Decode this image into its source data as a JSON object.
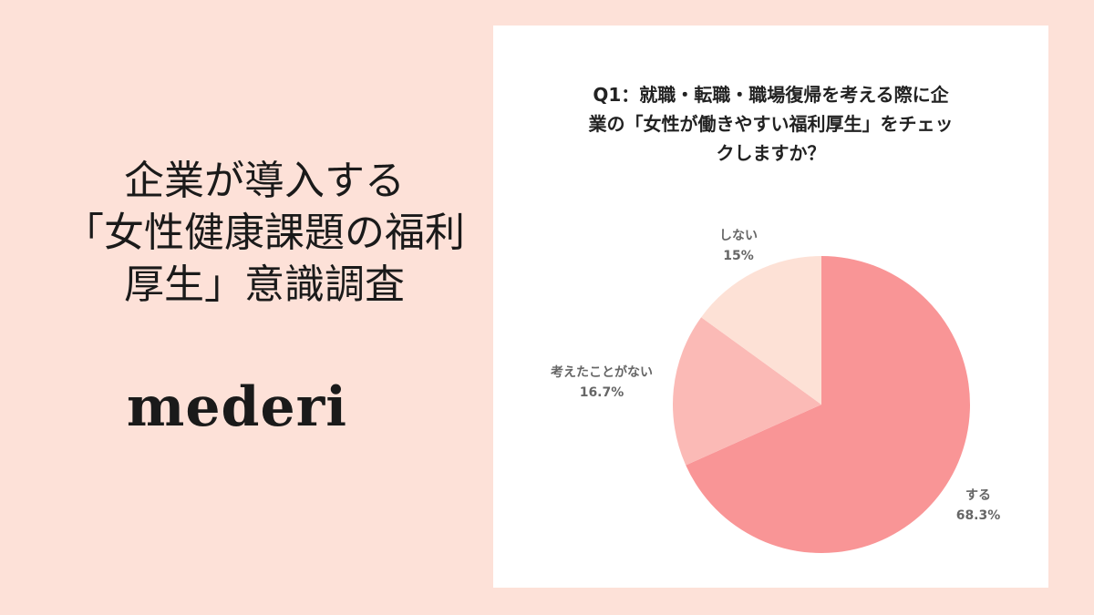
{
  "headline": [
    "企業が導入する",
    "「女性健康課題の福利",
    "厚生」意識調査"
  ],
  "logo": "mederi",
  "chart_data": {
    "type": "pie",
    "title_lines": [
      "Q1：就職・転職・職場復帰を考える際に企",
      "業の「女性が働きやすい福利厚生」をチェッ",
      "クしますか？"
    ],
    "start": "12 o'clock, clockwise",
    "slices": [
      {
        "label": "する",
        "value": 68.3,
        "value_label": "68.3%",
        "color": "#f99596"
      },
      {
        "label": "考えたことがない",
        "value": 16.7,
        "value_label": "16.7%",
        "color": "#fbbab6"
      },
      {
        "label": "しない",
        "value": 15,
        "value_label": "15%",
        "color": "#fde1d6"
      }
    ]
  }
}
